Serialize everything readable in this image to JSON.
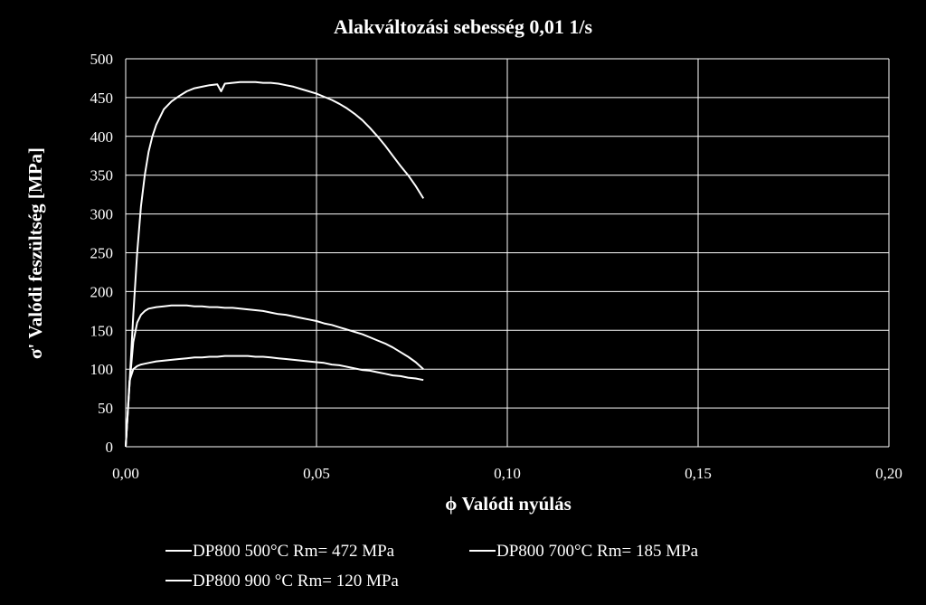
{
  "chart_data": {
    "type": "line",
    "title": "Alakváltozási sebesség 0,01 1/s",
    "xlabel": "ϕ Valódi nyúlás",
    "ylabel": "σ' Valódi feszültség [MPa]",
    "xlim": [
      0,
      0.2
    ],
    "ylim": [
      0,
      500
    ],
    "xticks": [
      0,
      0.05,
      0.1,
      0.15,
      0.2
    ],
    "xtick_labels": [
      "0,00",
      "0,05",
      "0,10",
      "0,15",
      "0,20"
    ],
    "yticks": [
      0,
      50,
      100,
      150,
      200,
      250,
      300,
      350,
      400,
      450,
      500
    ],
    "ytick_labels": [
      "0",
      "50",
      "100",
      "150",
      "200",
      "250",
      "300",
      "350",
      "400",
      "450",
      "500"
    ],
    "grid": true,
    "legend_position": "bottom",
    "line_color": "#ffffff",
    "series": [
      {
        "name": "DP800 500°C Rm= 472 MPa",
        "x": [
          0,
          0.001,
          0.002,
          0.003,
          0.004,
          0.005,
          0.006,
          0.007,
          0.008,
          0.009,
          0.01,
          0.012,
          0.014,
          0.016,
          0.018,
          0.02,
          0.022,
          0.024,
          0.025,
          0.026,
          0.028,
          0.03,
          0.032,
          0.034,
          0.036,
          0.038,
          0.04,
          0.042,
          0.044,
          0.046,
          0.048,
          0.05,
          0.052,
          0.054,
          0.056,
          0.058,
          0.06,
          0.062,
          0.064,
          0.066,
          0.068,
          0.07,
          0.072,
          0.074,
          0.076,
          0.078
        ],
        "y": [
          0,
          80,
          170,
          250,
          310,
          350,
          380,
          400,
          415,
          425,
          435,
          445,
          452,
          458,
          462,
          464,
          466,
          467,
          458,
          468,
          469,
          470,
          470,
          470,
          469,
          469,
          468,
          466,
          464,
          461,
          458,
          455,
          451,
          447,
          442,
          436,
          429,
          421,
          411,
          400,
          388,
          375,
          362,
          350,
          336,
          320
        ]
      },
      {
        "name": "DP800 700°C Rm= 185 MPa",
        "x": [
          0,
          0.001,
          0.002,
          0.003,
          0.004,
          0.005,
          0.006,
          0.008,
          0.01,
          0.012,
          0.014,
          0.016,
          0.018,
          0.02,
          0.022,
          0.024,
          0.026,
          0.028,
          0.03,
          0.032,
          0.034,
          0.036,
          0.038,
          0.04,
          0.042,
          0.044,
          0.046,
          0.048,
          0.05,
          0.052,
          0.054,
          0.056,
          0.058,
          0.06,
          0.062,
          0.064,
          0.066,
          0.068,
          0.07,
          0.072,
          0.074,
          0.076,
          0.078
        ],
        "y": [
          0,
          80,
          135,
          160,
          170,
          175,
          178,
          180,
          181,
          182,
          182,
          182,
          181,
          181,
          180,
          180,
          179,
          179,
          178,
          177,
          176,
          175,
          173,
          171,
          170,
          168,
          166,
          164,
          162,
          159,
          157,
          154,
          151,
          148,
          145,
          141,
          137,
          133,
          128,
          122,
          116,
          109,
          100
        ]
      },
      {
        "name": "DP800 900 °C Rm= 120 MPa",
        "x": [
          0,
          0.001,
          0.002,
          0.003,
          0.004,
          0.005,
          0.006,
          0.008,
          0.01,
          0.012,
          0.014,
          0.016,
          0.018,
          0.02,
          0.022,
          0.024,
          0.026,
          0.028,
          0.03,
          0.032,
          0.034,
          0.036,
          0.038,
          0.04,
          0.042,
          0.044,
          0.046,
          0.048,
          0.05,
          0.052,
          0.054,
          0.056,
          0.058,
          0.06,
          0.062,
          0.064,
          0.066,
          0.068,
          0.07,
          0.072,
          0.074,
          0.076,
          0.078
        ],
        "y": [
          0,
          85,
          100,
          104,
          106,
          107,
          108,
          110,
          111,
          112,
          113,
          114,
          115,
          115,
          116,
          116,
          117,
          117,
          117,
          117,
          116,
          116,
          115,
          114,
          113,
          112,
          111,
          110,
          109,
          108,
          106,
          105,
          103,
          101,
          99,
          98,
          96,
          94,
          92,
          91,
          89,
          88,
          86
        ]
      }
    ]
  }
}
